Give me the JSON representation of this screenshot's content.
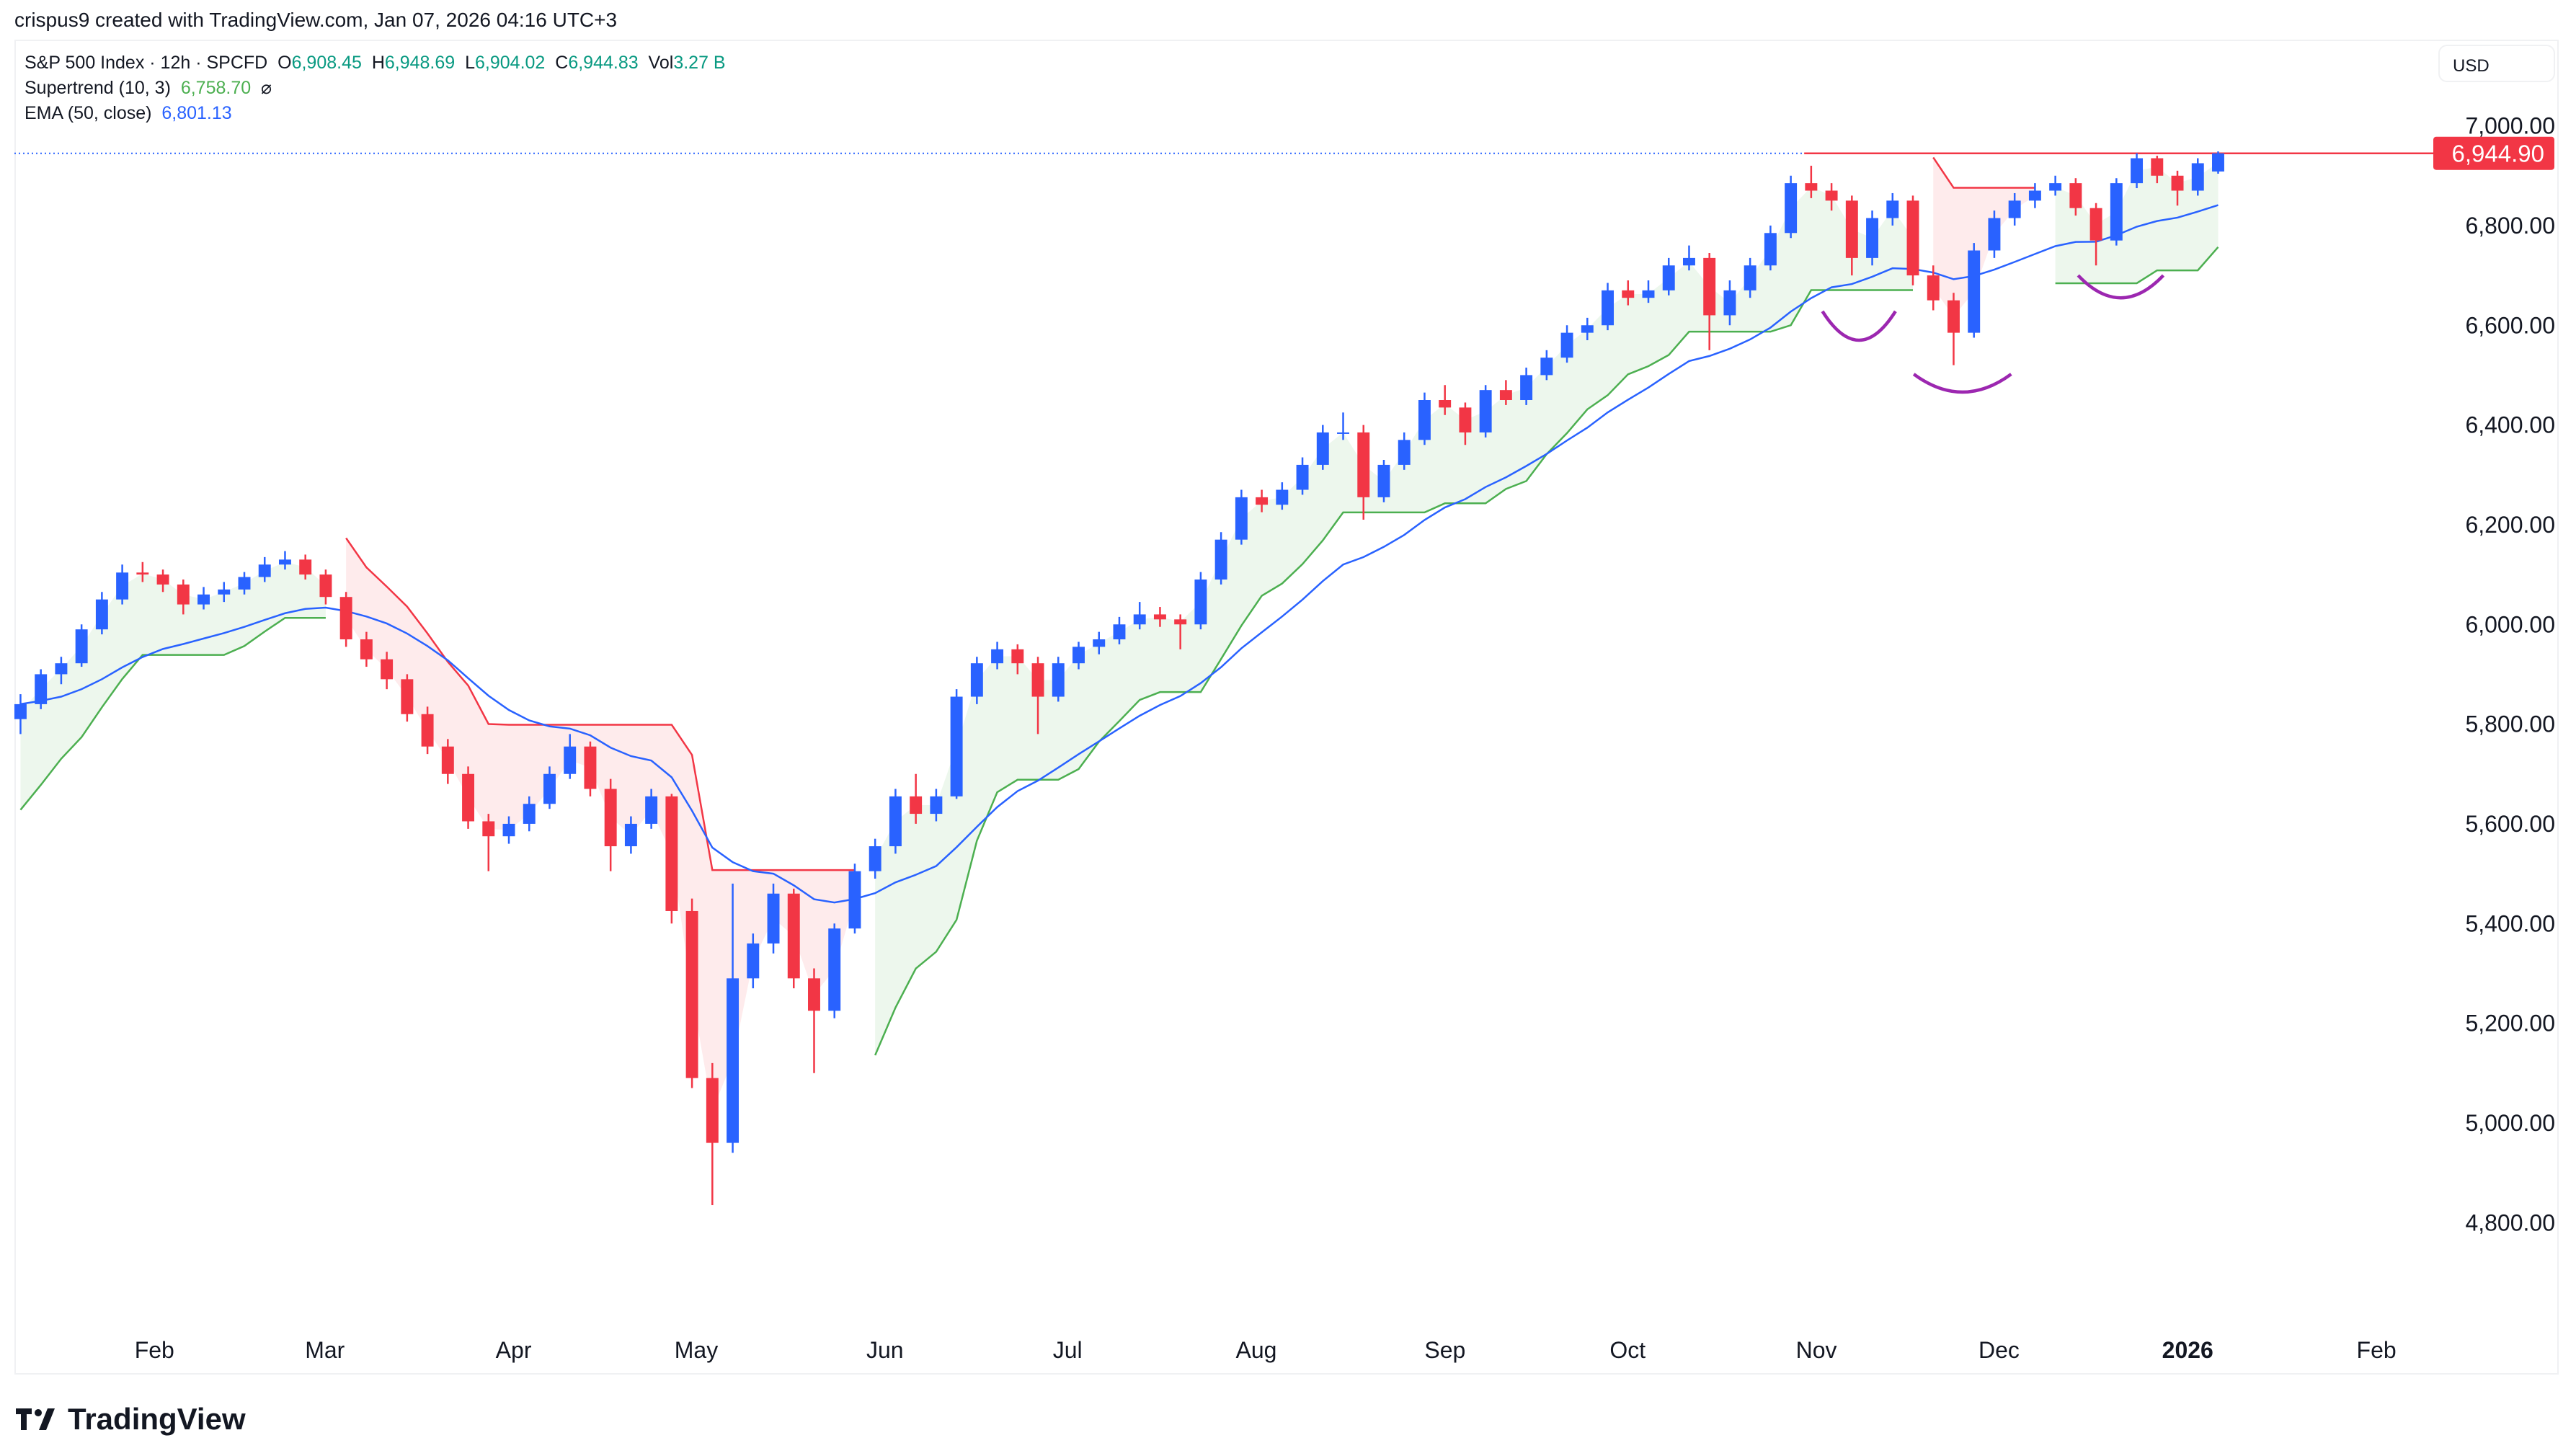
{
  "credit": "crispus9 created with TradingView.com, Jan 07, 2026 04:16 UTC+3",
  "legend": {
    "symbol": "S&P 500 Index · 12h · SPCFD",
    "o_label": "O",
    "o": "6,908.45",
    "h_label": "H",
    "h": "6,948.69",
    "l_label": "L",
    "l": "6,904.02",
    "c_label": "C",
    "c": "6,944.83",
    "vol_label": "Vol",
    "vol": "3.27 B",
    "supertrend_label": "Supertrend (10, 3)",
    "supertrend_value": "6,758.70",
    "supertrend_icon": "⌀",
    "ema_label": "EMA (50, close)",
    "ema_value": "6,801.13"
  },
  "currency": "USD",
  "logo_text": "TradingView",
  "colors": {
    "up": "#2962ff",
    "down": "#f23645",
    "supertrend_up": "#4caf50",
    "supertrend_down": "#f23645",
    "ema": "#2962ff",
    "annotation": "#9c27b0",
    "price_label": "#f23645"
  },
  "chart_data": {
    "type": "candlestick",
    "title": "S&P 500 Index",
    "ylim": [
      4650,
      7170
    ],
    "yticks": [
      4800,
      5000,
      5200,
      5400,
      5600,
      5800,
      6000,
      6200,
      6400,
      6600,
      6800,
      7000
    ],
    "ytick_labels": [
      "4,800.00",
      "5,000.00",
      "5,200.00",
      "5,400.00",
      "5,600.00",
      "5,800.00",
      "6,000.00",
      "6,200.00",
      "6,400.00",
      "6,600.00",
      "6,800.00",
      "7,000.00"
    ],
    "xlim": [
      "2025-01-09",
      "2026-02-12"
    ],
    "xticks": [
      {
        "date": "2025-02-01",
        "label": "Feb"
      },
      {
        "date": "2025-03-01",
        "label": "Mar"
      },
      {
        "date": "2025-04-01",
        "label": "Apr"
      },
      {
        "date": "2025-05-01",
        "label": "May"
      },
      {
        "date": "2025-06-01",
        "label": "Jun"
      },
      {
        "date": "2025-07-01",
        "label": "Jul"
      },
      {
        "date": "2025-08-01",
        "label": "Aug"
      },
      {
        "date": "2025-09-01",
        "label": "Sep"
      },
      {
        "date": "2025-10-01",
        "label": "Oct"
      },
      {
        "date": "2025-11-01",
        "label": "Nov"
      },
      {
        "date": "2025-12-01",
        "label": "Dec"
      },
      {
        "date": "2026-01-01",
        "label": "2026",
        "bold": true
      },
      {
        "date": "2026-02-01",
        "label": "Feb"
      }
    ],
    "candle_dates": [
      "2025-01-10",
      "2026-01-06"
    ],
    "candles_ohlc": [
      [
        5810,
        5860,
        5780,
        5840
      ],
      [
        5840,
        5910,
        5830,
        5900
      ],
      [
        5900,
        5935,
        5880,
        5922
      ],
      [
        5922,
        6000,
        5915,
        5990
      ],
      [
        5990,
        6065,
        5980,
        6050
      ],
      [
        6050,
        6120,
        6040,
        6104
      ],
      [
        6104,
        6125,
        6085,
        6100
      ],
      [
        6100,
        6110,
        6065,
        6080
      ],
      [
        6080,
        6090,
        6020,
        6040
      ],
      [
        6040,
        6075,
        6030,
        6060
      ],
      [
        6060,
        6085,
        6045,
        6070
      ],
      [
        6070,
        6105,
        6060,
        6095
      ],
      [
        6095,
        6135,
        6085,
        6120
      ],
      [
        6120,
        6147,
        6110,
        6130
      ],
      [
        6130,
        6140,
        6090,
        6100
      ],
      [
        6100,
        6110,
        6040,
        6055
      ],
      [
        6055,
        6065,
        5955,
        5970
      ],
      [
        5970,
        5985,
        5915,
        5930
      ],
      [
        5930,
        5945,
        5870,
        5890
      ],
      [
        5890,
        5900,
        5805,
        5820
      ],
      [
        5820,
        5835,
        5740,
        5755
      ],
      [
        5755,
        5770,
        5680,
        5700
      ],
      [
        5700,
        5715,
        5590,
        5605
      ],
      [
        5605,
        5620,
        5505,
        5575
      ],
      [
        5575,
        5615,
        5560,
        5600
      ],
      [
        5600,
        5655,
        5585,
        5640
      ],
      [
        5640,
        5715,
        5630,
        5700
      ],
      [
        5700,
        5780,
        5690,
        5755
      ],
      [
        5755,
        5765,
        5655,
        5670
      ],
      [
        5670,
        5690,
        5505,
        5555
      ],
      [
        5555,
        5615,
        5540,
        5600
      ],
      [
        5600,
        5670,
        5590,
        5655
      ],
      [
        5655,
        5660,
        5400,
        5425
      ],
      [
        5425,
        5450,
        5070,
        5090
      ],
      [
        5090,
        5120,
        4835,
        4960
      ],
      [
        4960,
        5480,
        4940,
        5290
      ],
      [
        5290,
        5380,
        5270,
        5360
      ],
      [
        5360,
        5480,
        5340,
        5460
      ],
      [
        5460,
        5470,
        5270,
        5290
      ],
      [
        5290,
        5310,
        5100,
        5225
      ],
      [
        5225,
        5400,
        5210,
        5390
      ],
      [
        5390,
        5520,
        5380,
        5505
      ],
      [
        5505,
        5570,
        5490,
        5555
      ],
      [
        5555,
        5670,
        5540,
        5655
      ],
      [
        5655,
        5700,
        5600,
        5620
      ],
      [
        5620,
        5670,
        5605,
        5655
      ],
      [
        5655,
        5870,
        5650,
        5855
      ],
      [
        5855,
        5935,
        5840,
        5922
      ],
      [
        5922,
        5965,
        5910,
        5950
      ],
      [
        5950,
        5960,
        5900,
        5922
      ],
      [
        5922,
        5935,
        5780,
        5855
      ],
      [
        5855,
        5935,
        5845,
        5922
      ],
      [
        5922,
        5965,
        5910,
        5955
      ],
      [
        5955,
        5985,
        5940,
        5970
      ],
      [
        5970,
        6015,
        5960,
        6000
      ],
      [
        6000,
        6045,
        5990,
        6020
      ],
      [
        6020,
        6035,
        5995,
        6010
      ],
      [
        6010,
        6020,
        5950,
        6000
      ],
      [
        6000,
        6105,
        5990,
        6090
      ],
      [
        6090,
        6185,
        6080,
        6170
      ],
      [
        6170,
        6270,
        6160,
        6255
      ],
      [
        6255,
        6270,
        6225,
        6240
      ],
      [
        6240,
        6285,
        6230,
        6270
      ],
      [
        6270,
        6335,
        6260,
        6320
      ],
      [
        6320,
        6400,
        6310,
        6385
      ],
      [
        6385,
        6425,
        6370,
        6385
      ],
      [
        6385,
        6400,
        6210,
        6255
      ],
      [
        6255,
        6330,
        6245,
        6320
      ],
      [
        6320,
        6385,
        6310,
        6370
      ],
      [
        6370,
        6465,
        6360,
        6450
      ],
      [
        6450,
        6480,
        6420,
        6435
      ],
      [
        6435,
        6445,
        6360,
        6385
      ],
      [
        6385,
        6480,
        6375,
        6470
      ],
      [
        6470,
        6490,
        6440,
        6450
      ],
      [
        6450,
        6515,
        6440,
        6500
      ],
      [
        6500,
        6550,
        6490,
        6535
      ],
      [
        6535,
        6600,
        6525,
        6585
      ],
      [
        6585,
        6615,
        6570,
        6600
      ],
      [
        6600,
        6685,
        6590,
        6670
      ],
      [
        6670,
        6690,
        6640,
        6655
      ],
      [
        6655,
        6690,
        6645,
        6670
      ],
      [
        6670,
        6735,
        6660,
        6720
      ],
      [
        6720,
        6760,
        6710,
        6735
      ],
      [
        6735,
        6745,
        6550,
        6620
      ],
      [
        6620,
        6690,
        6600,
        6670
      ],
      [
        6670,
        6735,
        6655,
        6720
      ],
      [
        6720,
        6800,
        6710,
        6785
      ],
      [
        6785,
        6900,
        6775,
        6885
      ],
      [
        6885,
        6920,
        6855,
        6870
      ],
      [
        6870,
        6885,
        6830,
        6850
      ],
      [
        6850,
        6860,
        6700,
        6735
      ],
      [
        6735,
        6830,
        6720,
        6815
      ],
      [
        6815,
        6865,
        6800,
        6850
      ],
      [
        6850,
        6860,
        6680,
        6700
      ],
      [
        6700,
        6720,
        6630,
        6650
      ],
      [
        6650,
        6665,
        6520,
        6585
      ],
      [
        6585,
        6765,
        6575,
        6750
      ],
      [
        6750,
        6830,
        6735,
        6815
      ],
      [
        6815,
        6865,
        6800,
        6850
      ],
      [
        6850,
        6885,
        6835,
        6870
      ],
      [
        6870,
        6900,
        6860,
        6885
      ],
      [
        6885,
        6895,
        6820,
        6835
      ],
      [
        6835,
        6845,
        6720,
        6770
      ],
      [
        6770,
        6895,
        6760,
        6885
      ],
      [
        6885,
        6945,
        6875,
        6935
      ],
      [
        6935,
        6940,
        6885,
        6900
      ],
      [
        6900,
        6910,
        6840,
        6870
      ],
      [
        6870,
        6935,
        6860,
        6925
      ],
      [
        6908.45,
        6948.69,
        6904.02,
        6944.83
      ]
    ],
    "last_price": 6944.9,
    "last_price_label": "6,944.90",
    "resistance": {
      "value": 6944.9,
      "from": "2025-10-30"
    },
    "annotations_arcs": [
      {
        "from": "2025-11-02",
        "to": "2025-11-14",
        "top": 6628,
        "bottom": 6570
      },
      {
        "from": "2025-11-17",
        "to": "2025-12-03",
        "top": 6502,
        "bottom": 6466
      },
      {
        "from": "2025-12-14",
        "to": "2025-12-28",
        "top": 6700,
        "bottom": 6655
      }
    ]
  }
}
